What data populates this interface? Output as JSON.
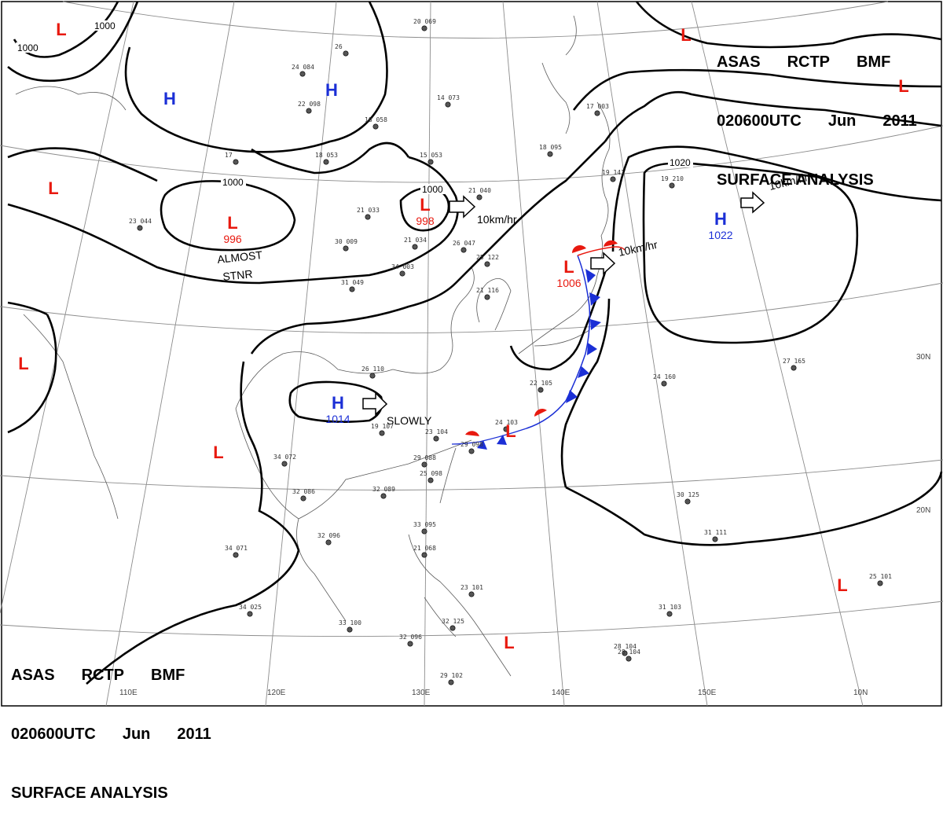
{
  "header": {
    "line1": [
      "ASAS",
      "RCTP",
      "BMF"
    ],
    "line2": [
      "020600UTC",
      "Jun",
      "2011"
    ],
    "line3": "SURFACE ANALYSIS"
  },
  "colors": {
    "low": "#e8190f",
    "high": "#1b2fd6",
    "warm_front": "#e8190f",
    "cold_front": "#1b2fd6",
    "isobar": "#000000"
  },
  "axis_labels": [
    "110E",
    "120E",
    "130E",
    "140E",
    "150E",
    "10N",
    "20N",
    "30N"
  ],
  "pressure_centers": [
    {
      "type": "L",
      "pressure": ""
    },
    {
      "type": "L",
      "pressure": ""
    },
    {
      "type": "L",
      "pressure": "996"
    },
    {
      "type": "L",
      "pressure": "998"
    },
    {
      "type": "L",
      "pressure": "1006"
    },
    {
      "type": "L",
      "pressure": ""
    },
    {
      "type": "L",
      "pressure": ""
    },
    {
      "type": "L",
      "pressure": ""
    },
    {
      "type": "L",
      "pressure": ""
    },
    {
      "type": "L",
      "pressure": ""
    },
    {
      "type": "L",
      "pressure": ""
    },
    {
      "type": "L",
      "pressure": ""
    },
    {
      "type": "H",
      "pressure": ""
    },
    {
      "type": "H",
      "pressure": ""
    },
    {
      "type": "H",
      "pressure": "1014"
    },
    {
      "type": "H",
      "pressure": "1022"
    }
  ],
  "isobar_labels": [
    "1000",
    "1000",
    "1000",
    "1000",
    "1020"
  ],
  "movement_labels": [
    "10km/hr",
    "10km/hr",
    "10km/hr",
    "SLOWLY",
    "ALMOST",
    "STNR"
  ],
  "station_texts": [
    "20 069",
    "26",
    "24 084",
    "22 098",
    "18 058",
    "14 073",
    "18 053",
    "17",
    "15 053",
    "21 040",
    "21 033",
    "23 044",
    "21 034",
    "30 009",
    "31 049",
    "34 003",
    "26 047",
    "25 122",
    "21 116",
    "22 105",
    "24 103",
    "23 104",
    "29 098",
    "29 088",
    "25 098",
    "33 095",
    "21 068",
    "23 101",
    "28 104",
    "30 125",
    "31 111",
    "24 160",
    "27 165",
    "18 095",
    "19 141",
    "17 003",
    "19 210",
    "26 110",
    "19 107",
    "34 072",
    "32 086",
    "32 089",
    "32 096",
    "34 071",
    "34 025",
    "33 100",
    "32 096",
    "32 125",
    "28 104",
    "29 102",
    "31 103",
    "25 101"
  ]
}
